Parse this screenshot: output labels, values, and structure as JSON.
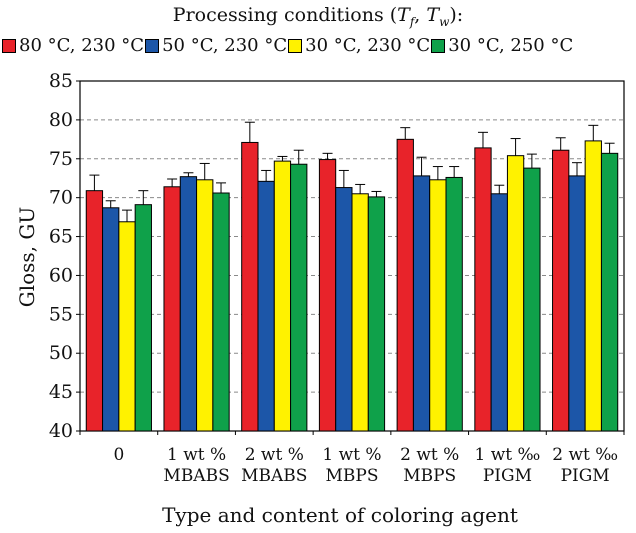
{
  "chart_data": {
    "type": "bar",
    "legend_title": "Processing conditions (Tf, Tw):",
    "legend_title_parts": {
      "pre": "Processing conditions (",
      "t1": "T",
      "s1": "f",
      "sep": ", ",
      "t2": "T",
      "s2": "w",
      "post": "):"
    },
    "categories": [
      [
        "0"
      ],
      [
        "1 wt %",
        "MBABS"
      ],
      [
        "2 wt %",
        "MBABS"
      ],
      [
        "1 wt %",
        "MBPS"
      ],
      [
        "2 wt %",
        "MBPS"
      ],
      [
        "1 wt ‰",
        "PIGM"
      ],
      [
        "2 wt ‰",
        "PIGM"
      ]
    ],
    "series": [
      {
        "name": "80 °C,  230 °C",
        "color": "#e8232a",
        "values": [
          70.9,
          71.4,
          77.1,
          74.9,
          77.5,
          76.4,
          76.1
        ],
        "errors": [
          2.0,
          1.0,
          2.6,
          0.8,
          1.5,
          2.0,
          1.6
        ]
      },
      {
        "name": "50 °C,  230 °C",
        "color": "#1c56a8",
        "values": [
          68.7,
          72.7,
          72.1,
          71.3,
          72.8,
          70.5,
          72.8
        ],
        "errors": [
          0.9,
          0.5,
          1.4,
          2.2,
          2.4,
          1.1,
          1.7
        ]
      },
      {
        "name": "30 °C,  230 °C",
        "color": "#fff200",
        "values": [
          66.9,
          72.3,
          74.7,
          70.5,
          72.3,
          75.4,
          77.3
        ],
        "errors": [
          1.5,
          2.1,
          0.6,
          1.2,
          1.7,
          2.2,
          2.0
        ]
      },
      {
        "name": "30 °C,  250 °C",
        "color": "#0fa14a",
        "values": [
          69.1,
          70.6,
          74.3,
          70.1,
          72.6,
          73.8,
          75.7
        ],
        "errors": [
          1.8,
          1.3,
          1.8,
          0.7,
          1.4,
          1.8,
          1.3
        ]
      }
    ],
    "ylabel": "Gloss, GU",
    "xlabel": "Type and content of coloring agent",
    "ylim": [
      40,
      85
    ],
    "yticks": [
      40,
      45,
      50,
      55,
      60,
      65,
      70,
      75,
      80,
      85
    ],
    "grid": true,
    "legend_position": "top"
  }
}
